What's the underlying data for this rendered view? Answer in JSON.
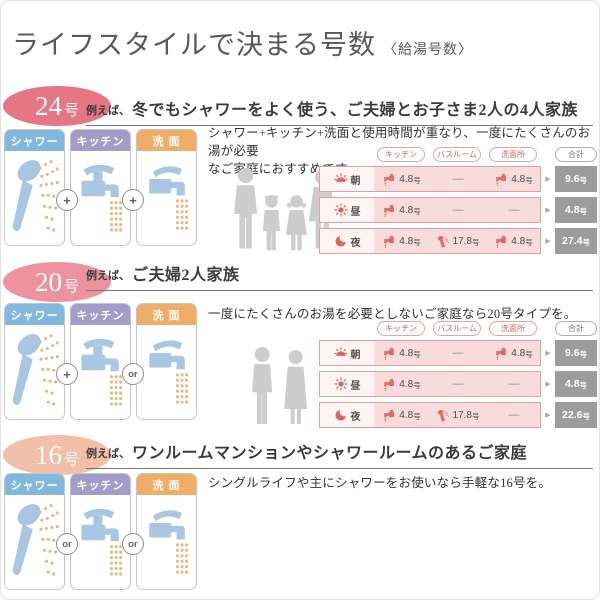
{
  "title": {
    "main": "ライフスタイルで決まる号数",
    "sub": "〈給湯号数〉"
  },
  "colors": {
    "badge_24": "#e57784",
    "badge_20": "#ec939e",
    "badge_16": "#f2bfa9",
    "shower_header": "#82b7de",
    "kitchen_header": "#a49cc8",
    "washbasin_header": "#efae67",
    "accent_red": "#dd6f66",
    "row_pink": "#f8dcdc",
    "total_gray": "#9c9c9c",
    "illus_blue": "#a9c6e2",
    "spray_orange": "#e7b87c"
  },
  "table_headers": {
    "kitchen": "キッチン",
    "bathroom": "バスルーム",
    "washroom": "洗面所",
    "total": "合計"
  },
  "sections": [
    {
      "badge": {
        "number": "24",
        "unit": "号",
        "color": "#e57784"
      },
      "example_prefix": "例えば、",
      "heading": "冬でもシャワーをよく使う、ご夫婦とお子さま2人の4人家族",
      "cards": [
        {
          "label": "シャワー",
          "header_color": "#82b7de",
          "icon": "hand-shower-icon"
        },
        {
          "label": "キッチン",
          "header_color": "#a49cc8",
          "icon": "kitchen-faucet-icon"
        },
        {
          "label": "洗 面",
          "header_color": "#efae67",
          "icon": "washbasin-faucet-icon"
        }
      ],
      "connectors": [
        "+",
        "+"
      ],
      "description": "シャワー+キッチン+洗面と使用時間が重なり、一度にたくさんのお湯が必要\nなご家庭におすすめです。",
      "family_icon": "family-of-four-silhouette",
      "table": {
        "rows": [
          {
            "time": "朝",
            "time_icon": "sunrise-icon",
            "cells": [
              {
                "icon": "faucet-icon",
                "value": "4.8",
                "unit": "号"
              },
              {
                "icon": "",
                "value": "—",
                "unit": ""
              },
              {
                "icon": "faucet-icon",
                "value": "4.8",
                "unit": "号"
              }
            ],
            "total": "9.6",
            "total_unit": "号"
          },
          {
            "time": "昼",
            "time_icon": "sun-icon",
            "cells": [
              {
                "icon": "faucet-icon",
                "value": "4.8",
                "unit": "号"
              },
              {
                "icon": "",
                "value": "—",
                "unit": ""
              },
              {
                "icon": "",
                "value": "—",
                "unit": ""
              }
            ],
            "total": "4.8",
            "total_unit": "号"
          },
          {
            "time": "夜",
            "time_icon": "moon-icon",
            "cells": [
              {
                "icon": "faucet-icon",
                "value": "4.8",
                "unit": "号"
              },
              {
                "icon": "shower-icon",
                "value": "17.8",
                "unit": "号"
              },
              {
                "icon": "faucet-icon",
                "value": "4.8",
                "unit": "号"
              }
            ],
            "total": "27.4",
            "total_unit": "号"
          }
        ]
      }
    },
    {
      "badge": {
        "number": "20",
        "unit": "号",
        "color": "#ec939e"
      },
      "example_prefix": "例えば、",
      "heading": "ご夫婦2人家族",
      "cards": [
        {
          "label": "シャワー",
          "header_color": "#82b7de",
          "icon": "hand-shower-icon"
        },
        {
          "label": "キッチン",
          "header_color": "#a49cc8",
          "icon": "kitchen-faucet-icon"
        },
        {
          "label": "洗 面",
          "header_color": "#efae67",
          "icon": "washbasin-faucet-icon"
        }
      ],
      "connectors": [
        "+",
        "or"
      ],
      "description": "一度にたくさんのお湯を必要としないご家庭なら20号タイプを。",
      "family_icon": "couple-silhouette",
      "table": {
        "rows": [
          {
            "time": "朝",
            "time_icon": "sunrise-icon",
            "cells": [
              {
                "icon": "faucet-icon",
                "value": "4.8",
                "unit": "号"
              },
              {
                "icon": "",
                "value": "—",
                "unit": ""
              },
              {
                "icon": "faucet-icon",
                "value": "4.8",
                "unit": "号"
              }
            ],
            "total": "9.6",
            "total_unit": "号"
          },
          {
            "time": "昼",
            "time_icon": "sun-icon",
            "cells": [
              {
                "icon": "faucet-icon",
                "value": "4.8",
                "unit": "号"
              },
              {
                "icon": "",
                "value": "—",
                "unit": ""
              },
              {
                "icon": "",
                "value": "—",
                "unit": ""
              }
            ],
            "total": "4.8",
            "total_unit": "号"
          },
          {
            "time": "夜",
            "time_icon": "moon-icon",
            "cells": [
              {
                "icon": "faucet-icon",
                "value": "4.8",
                "unit": "号"
              },
              {
                "icon": "shower-icon",
                "value": "17.8",
                "unit": "号"
              },
              {
                "icon": "",
                "value": "—",
                "unit": ""
              }
            ],
            "total": "22.6",
            "total_unit": "号"
          }
        ]
      }
    },
    {
      "badge": {
        "number": "16",
        "unit": "号",
        "color": "#f2bfa9"
      },
      "example_prefix": "例えば、",
      "heading": "ワンルームマンションやシャワールームのあるご家庭",
      "cards": [
        {
          "label": "シャワー",
          "header_color": "#82b7de",
          "icon": "hand-shower-icon"
        },
        {
          "label": "キッチン",
          "header_color": "#a49cc8",
          "icon": "kitchen-faucet-icon"
        },
        {
          "label": "洗 面",
          "header_color": "#efae67",
          "icon": "washbasin-faucet-icon"
        }
      ],
      "connectors": [
        "or",
        "or"
      ],
      "description": "シングルライフや主にシャワーをお使いなら手軽な16号を。"
    }
  ]
}
